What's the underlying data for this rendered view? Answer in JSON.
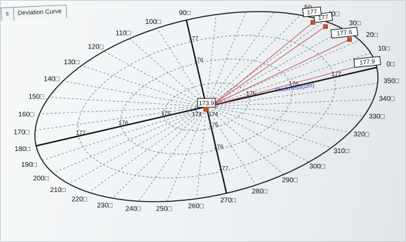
{
  "tabs": [
    {
      "label": "s"
    },
    {
      "label": "Deviation Curve"
    }
  ],
  "polar_chart": {
    "center_value_label": "173.9",
    "center_sub_labels": [
      "174",
      "174"
    ],
    "unit_label": "Thickness(um)",
    "ring_labels_right": [
      "175",
      "176",
      "177"
    ],
    "ring_labels_left": [
      "175",
      "176",
      "177"
    ],
    "ring_labels_up": [
      "176",
      "177"
    ],
    "ring_labels_down": [
      "175",
      "176",
      "177"
    ],
    "angle_labels": [
      {
        "angle": 0,
        "text": "0□"
      },
      {
        "angle": 10,
        "text": "10□"
      },
      {
        "angle": 20,
        "text": "20□"
      },
      {
        "angle": 30,
        "text": "30□"
      },
      {
        "angle": 40,
        "text": "40□"
      },
      {
        "angle": 50,
        "text": "50"
      },
      {
        "angle": 90,
        "text": "90□"
      },
      {
        "angle": 100,
        "text": "100□"
      },
      {
        "angle": 110,
        "text": "110□"
      },
      {
        "angle": 120,
        "text": "120□"
      },
      {
        "angle": 130,
        "text": "130□"
      },
      {
        "angle": 140,
        "text": "140□"
      },
      {
        "angle": 150,
        "text": "150□"
      },
      {
        "angle": 160,
        "text": "160□"
      },
      {
        "angle": 170,
        "text": "170□"
      },
      {
        "angle": 180,
        "text": "180□"
      },
      {
        "angle": 190,
        "text": "190□"
      },
      {
        "angle": 200,
        "text": "200□"
      },
      {
        "angle": 210,
        "text": "210□"
      },
      {
        "angle": 220,
        "text": "220□"
      },
      {
        "angle": 230,
        "text": "230□"
      },
      {
        "angle": 240,
        "text": "240□"
      },
      {
        "angle": 250,
        "text": "250□"
      },
      {
        "angle": 260,
        "text": "260□"
      },
      {
        "angle": 270,
        "text": "270□"
      },
      {
        "angle": 280,
        "text": "280□"
      },
      {
        "angle": 290,
        "text": "290□"
      },
      {
        "angle": 300,
        "text": "300□"
      },
      {
        "angle": 310,
        "text": "310□"
      },
      {
        "angle": 320,
        "text": "320□"
      },
      {
        "angle": 330,
        "text": "330□"
      },
      {
        "angle": 340,
        "text": "340□"
      },
      {
        "angle": 350,
        "text": "350□"
      }
    ],
    "points": [
      {
        "angle": 4,
        "value": "177.9"
      },
      {
        "angle": 23,
        "value": "177.6"
      },
      {
        "angle": 37,
        "value": "177"
      },
      {
        "angle": 43,
        "value": "177"
      }
    ],
    "colors": {
      "lead_line": "#c2555f",
      "marker": "#c9502b",
      "axis": "#111111"
    }
  }
}
